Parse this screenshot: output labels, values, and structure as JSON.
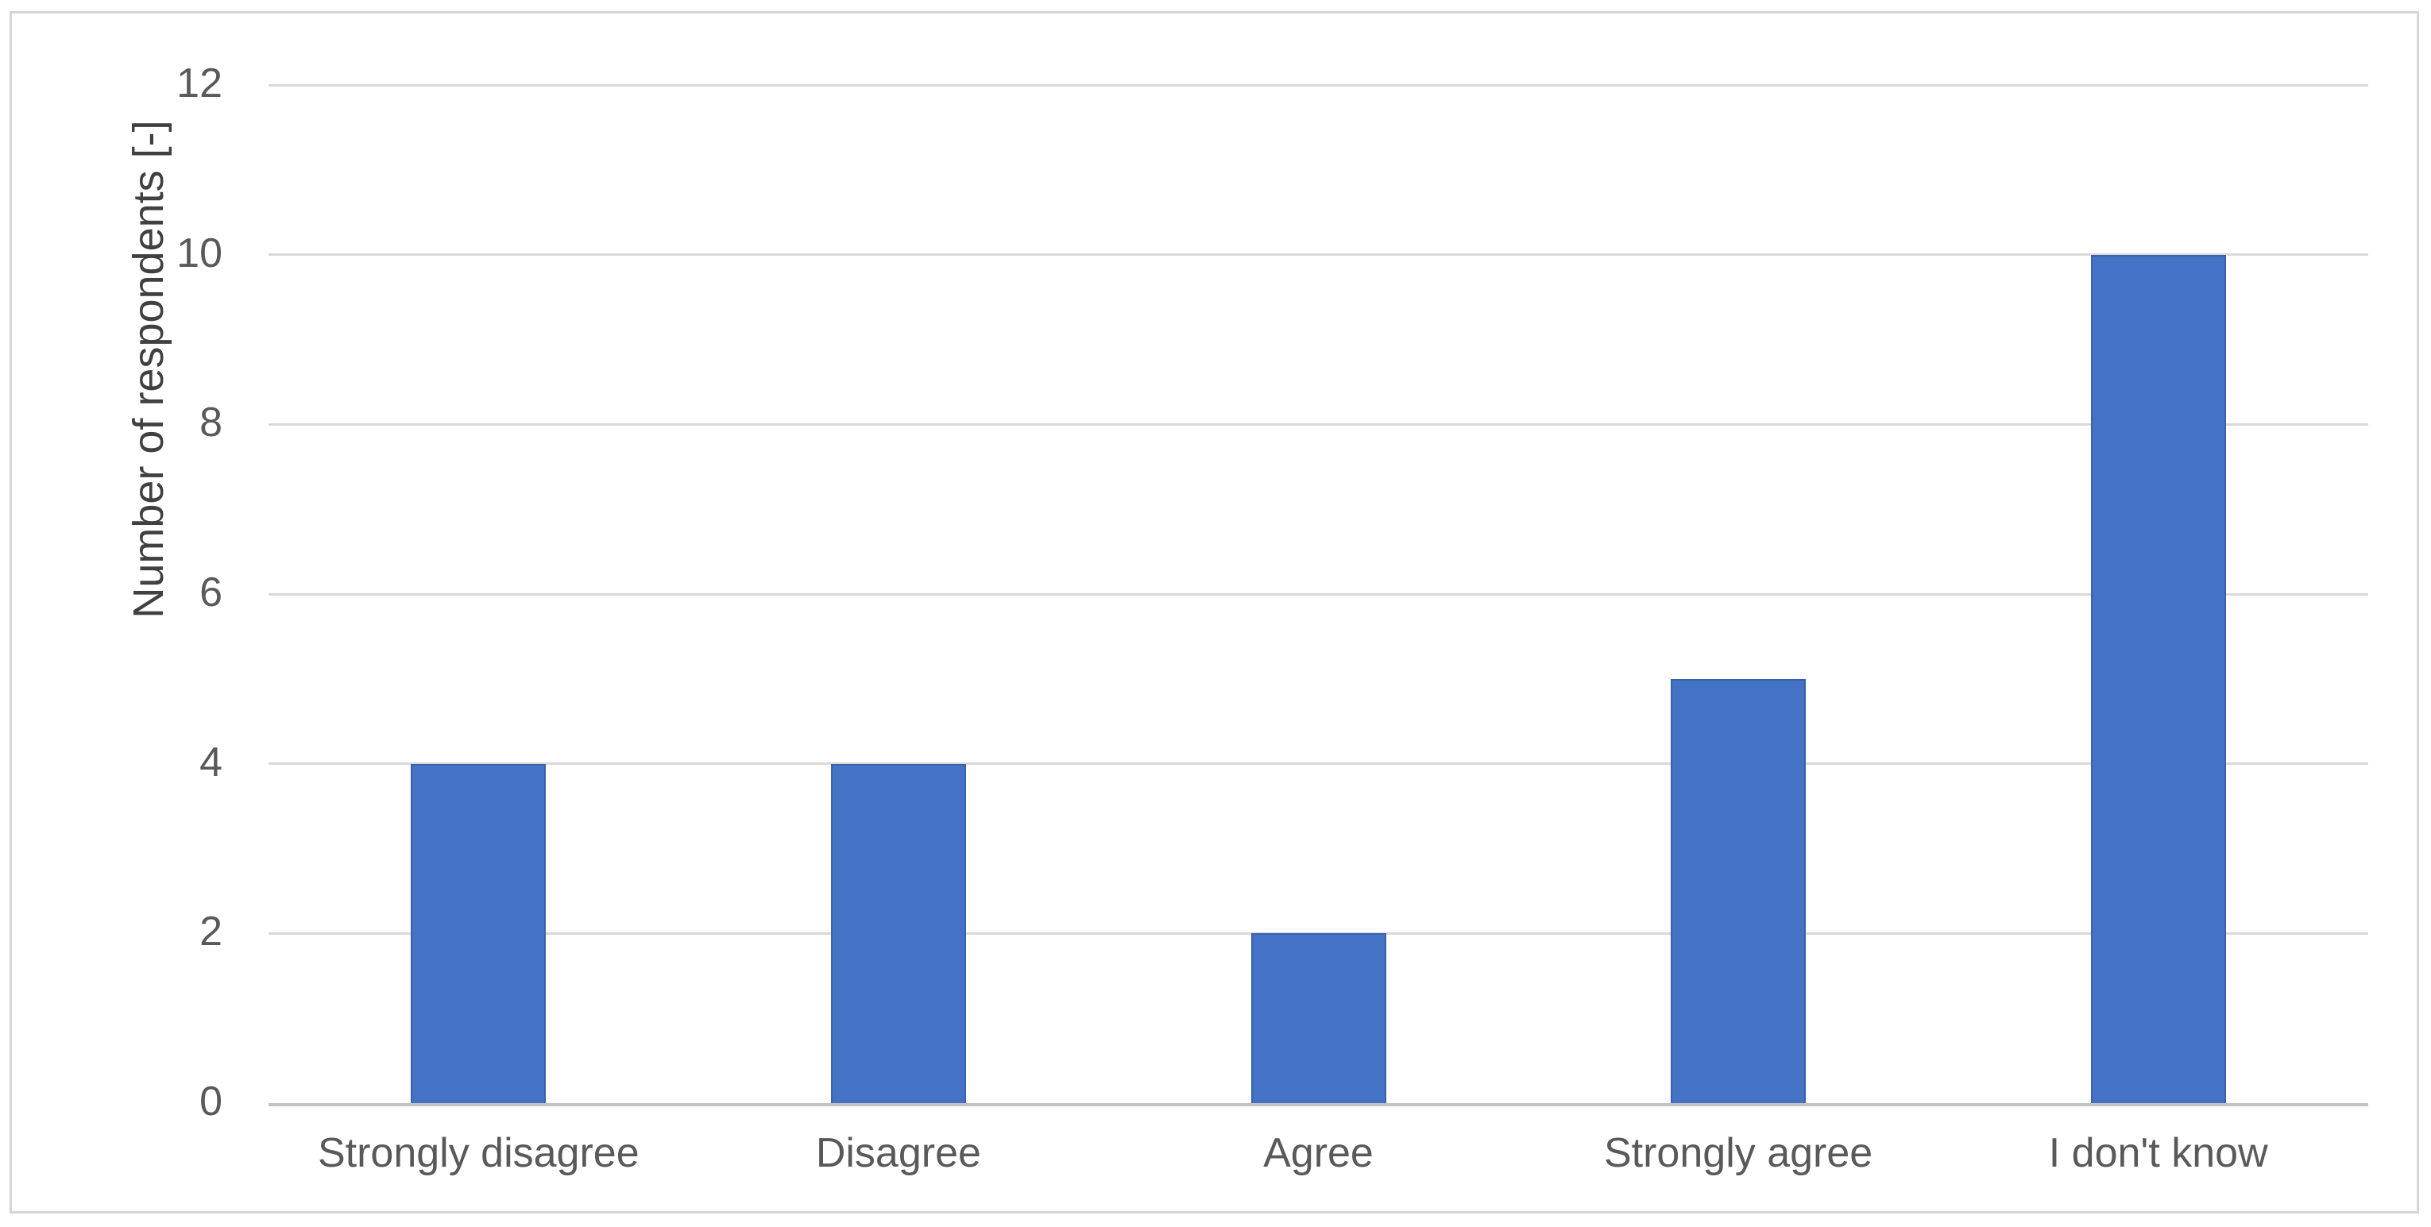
{
  "chart_data": {
    "type": "bar",
    "categories": [
      "Strongly disagree",
      "Disagree",
      "Agree",
      "Strongly agree",
      "I don't know"
    ],
    "values": [
      4,
      4,
      2,
      5,
      10
    ],
    "title": "",
    "xlabel": "",
    "ylabel": "Number of respondents [-]",
    "ylim": [
      0,
      12
    ],
    "yticks": [
      0,
      2,
      4,
      6,
      8,
      10,
      12
    ],
    "grid": true,
    "legend": false,
    "colors": {
      "bar_fill": "#4472C4",
      "bar_edge": "#3A62AC",
      "gridline": "#D9D9D9",
      "axis_line": "#C3C3C3",
      "tick_label_text": "#595959",
      "axis_title_text": "#404040",
      "chart_border": "#D6D6D6",
      "background": "#FFFFFF"
    }
  }
}
